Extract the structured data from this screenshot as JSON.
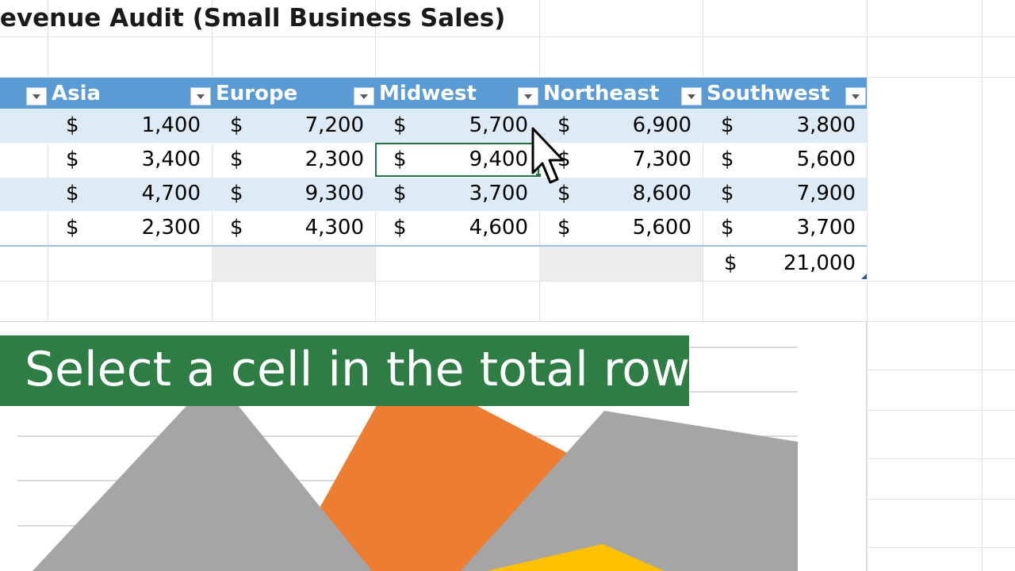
{
  "sheet": {
    "title": "Revenue Audit (Small Business Sales)"
  },
  "table": {
    "columns": [
      {
        "label": "Asia"
      },
      {
        "label": "Europe"
      },
      {
        "label": "Midwest"
      },
      {
        "label": "Northeast"
      },
      {
        "label": "Southwest"
      }
    ],
    "currency_symbol": "$",
    "rows": [
      [
        "1,400",
        "7,200",
        "5,700",
        "6,900",
        "3,800"
      ],
      [
        "3,400",
        "2,300",
        "9,400",
        "7,300",
        "5,600"
      ],
      [
        "4,700",
        "9,300",
        "3,700",
        "8,600",
        "7,900"
      ],
      [
        "2,300",
        "4,300",
        "4,600",
        "5,600",
        "3,700"
      ]
    ],
    "total_row": {
      "currency_symbol": "$",
      "southwest_value": "21,000"
    },
    "selected_cell": "Midwest row 2"
  },
  "caption": {
    "text": "Select a cell in the total row"
  },
  "colors": {
    "header_bg": "#5b9bd5",
    "band_bg": "#ddebf7",
    "caption_bg": "#2e7d45",
    "chart_gray": "#a5a5a5",
    "chart_orange": "#ed7d31",
    "chart_yellow": "#ffc000",
    "chart_blue": "#5b9bd5",
    "selection_green": "#217346"
  },
  "icons": {
    "filter": "filter-dropdown-icon",
    "cursor": "mouse-pointer-icon"
  }
}
